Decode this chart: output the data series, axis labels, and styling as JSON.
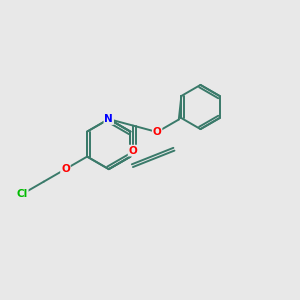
{
  "background_color": "#e8e8e8",
  "bond_color": "#3a7a6a",
  "atom_colors": {
    "N": "#0000ff",
    "O": "#ff0000",
    "Cl": "#00bb00",
    "C": "#3a7a6a"
  },
  "figsize": [
    3.0,
    3.0
  ],
  "dpi": 100,
  "xlim": [
    0,
    10
  ],
  "ylim": [
    0,
    10
  ]
}
